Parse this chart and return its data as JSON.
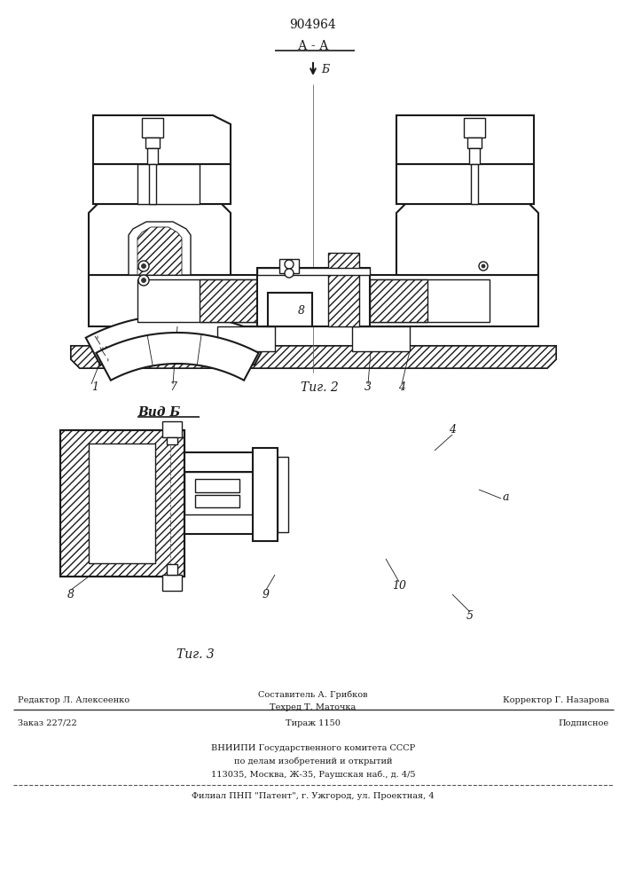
{
  "patent_number": "904964",
  "fig2_label": "А - А",
  "fig2_caption": "Τиг. 2",
  "fig3_title": "Вид Б",
  "fig3_caption": "Τиг. 3",
  "arrow_label": "Б",
  "bg_color": "#ffffff",
  "line_color": "#1a1a1a",
  "footer": {
    "line1_left": "Редактор Л. Алексеенко",
    "line1_center_top": "Составитель А. Грибков",
    "line1_center_bot": "Техред Т. Маточка",
    "line1_right": "Корректор Г. Назарова",
    "line2_left": "Заказ 227/22",
    "line2_center": "Тираж 1150",
    "line2_right": "Подписное",
    "line3": "ВНИИПИ Государственного комитета СССР",
    "line4": "по делам изобретений и открытий",
    "line5": "113035, Москва, Ж-35, Раушская наб., д. 4/5",
    "line6": "Филиал ПНП \"Патент\", г. Ужгород, ул. Проектная, 4"
  }
}
